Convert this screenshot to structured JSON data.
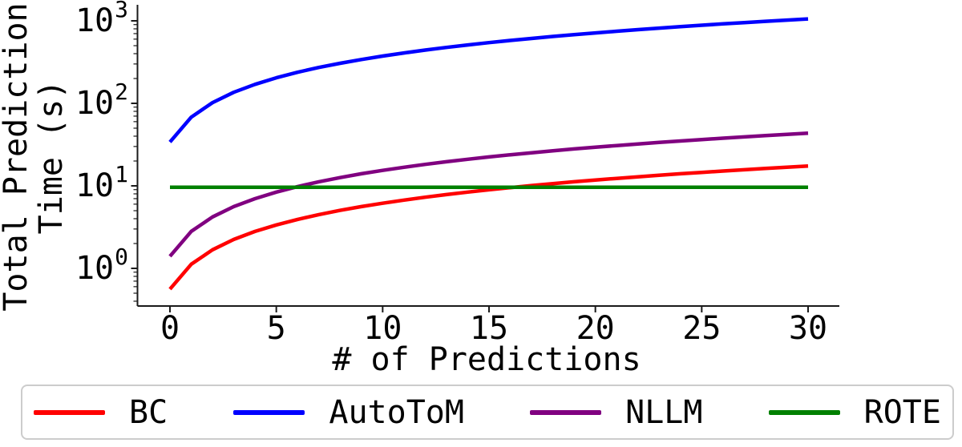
{
  "chart_data": {
    "type": "line",
    "title": "",
    "xlabel": "# of Predictions",
    "ylabel_lines": [
      "Total Prediction",
      "Time (s)"
    ],
    "yscale": "log",
    "xlim": [
      -1.5,
      31.5
    ],
    "ylim": [
      0.35,
      1500
    ],
    "x_ticks": [
      0,
      5,
      10,
      15,
      20,
      25,
      30
    ],
    "y_tick_base": "10",
    "y_tick_exponents": [
      0,
      1,
      2,
      3
    ],
    "grid": false,
    "legend_position": "bottom",
    "legend_border_color": "#cccccc",
    "axis_color": "#1a1a1a",
    "x": [
      0,
      1,
      2,
      3,
      4,
      5,
      6,
      7,
      8,
      9,
      10,
      11,
      12,
      13,
      14,
      15,
      16,
      17,
      18,
      19,
      20,
      21,
      22,
      23,
      24,
      25,
      26,
      27,
      28,
      29,
      30
    ],
    "series": [
      {
        "name": "BC",
        "color": "#ff0000",
        "values": [
          0.56,
          1.12,
          1.68,
          2.24,
          2.8,
          3.36,
          3.92,
          4.48,
          5.04,
          5.6,
          6.16,
          6.72,
          7.28,
          7.84,
          8.4,
          8.96,
          9.52,
          10.08,
          10.64,
          11.2,
          11.76,
          12.32,
          12.88,
          13.44,
          14.0,
          14.56,
          15.12,
          15.68,
          16.24,
          16.8,
          17.36
        ]
      },
      {
        "name": "AutoToM",
        "color": "#0000ff",
        "values": [
          34,
          68,
          102,
          136,
          170,
          204,
          238,
          272,
          306,
          340,
          374,
          408,
          442,
          476,
          510,
          544,
          578,
          612,
          646,
          680,
          714,
          748,
          782,
          816,
          850,
          884,
          918,
          952,
          986,
          1020,
          1054
        ]
      },
      {
        "name": "NLLM",
        "color": "#800080",
        "values": [
          1.4,
          2.8,
          4.2,
          5.6,
          7.0,
          8.4,
          9.8,
          11.2,
          12.6,
          14.0,
          15.4,
          16.8,
          18.2,
          19.6,
          21.0,
          22.4,
          23.8,
          25.2,
          26.6,
          28.0,
          29.4,
          30.8,
          32.2,
          33.6,
          35.0,
          36.4,
          37.8,
          39.2,
          40.6,
          42.0,
          43.4
        ]
      },
      {
        "name": "ROTE",
        "color": "#008000",
        "values": [
          9.6,
          9.6,
          9.6,
          9.6,
          9.6,
          9.6,
          9.6,
          9.6,
          9.6,
          9.6,
          9.6,
          9.6,
          9.6,
          9.6,
          9.6,
          9.6,
          9.6,
          9.6,
          9.6,
          9.6,
          9.6,
          9.6,
          9.6,
          9.6,
          9.6,
          9.6,
          9.6,
          9.6,
          9.6,
          9.6,
          9.6
        ]
      }
    ]
  }
}
